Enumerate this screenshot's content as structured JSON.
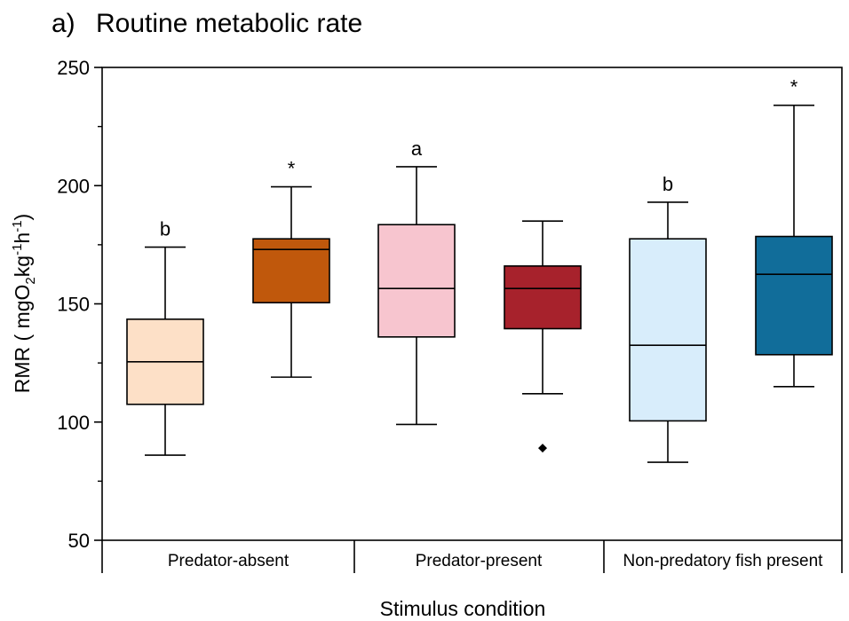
{
  "chart_data": {
    "type": "box",
    "panel_label": "a)",
    "title": "Routine metabolic rate",
    "xlabel": "Stimulus condition",
    "ylabel": {
      "prefix": "RMR ( mgO",
      "sub": "2",
      "mid1": "kg",
      "sup1": "-1",
      "mid2": "h",
      "sup2": "-1",
      "suffix": ")"
    },
    "ylim": [
      50,
      250
    ],
    "yticks": [
      50,
      100,
      150,
      200,
      250
    ],
    "groups": [
      "Predator-absent",
      "Predator-present",
      "Non-predatory fish present"
    ],
    "boxes": [
      {
        "group": "Predator-absent",
        "whisker_low": 86,
        "q1": 107.5,
        "median": 125.5,
        "q3": 143.5,
        "whisker_high": 174,
        "outliers": [],
        "label": "b",
        "color": "#fde0c7"
      },
      {
        "group": "Predator-absent",
        "whisker_low": 119,
        "q1": 150.5,
        "median": 173,
        "q3": 177.5,
        "whisker_high": 199.5,
        "outliers": [],
        "label": "*",
        "color": "#c0580c"
      },
      {
        "group": "Predator-present",
        "whisker_low": 99,
        "q1": 136,
        "median": 156.5,
        "q3": 183.5,
        "whisker_high": 208,
        "outliers": [],
        "label": "a",
        "color": "#f7c5cf"
      },
      {
        "group": "Predator-present",
        "whisker_low": 112,
        "q1": 139.5,
        "median": 156.5,
        "q3": 166,
        "whisker_high": 185,
        "outliers": [
          89
        ],
        "label": "",
        "color": "#a7222c"
      },
      {
        "group": "Non-predatory fish present",
        "whisker_low": 83,
        "q1": 100.5,
        "median": 132.5,
        "q3": 177.5,
        "whisker_high": 193,
        "outliers": [],
        "label": "b",
        "color": "#d8edfb"
      },
      {
        "group": "Non-predatory fish present",
        "whisker_low": 115,
        "q1": 128.5,
        "median": 162.5,
        "q3": 178.5,
        "whisker_high": 234,
        "outliers": [],
        "label": "*",
        "color": "#116d9a"
      }
    ],
    "grid": false,
    "legend": "none"
  }
}
